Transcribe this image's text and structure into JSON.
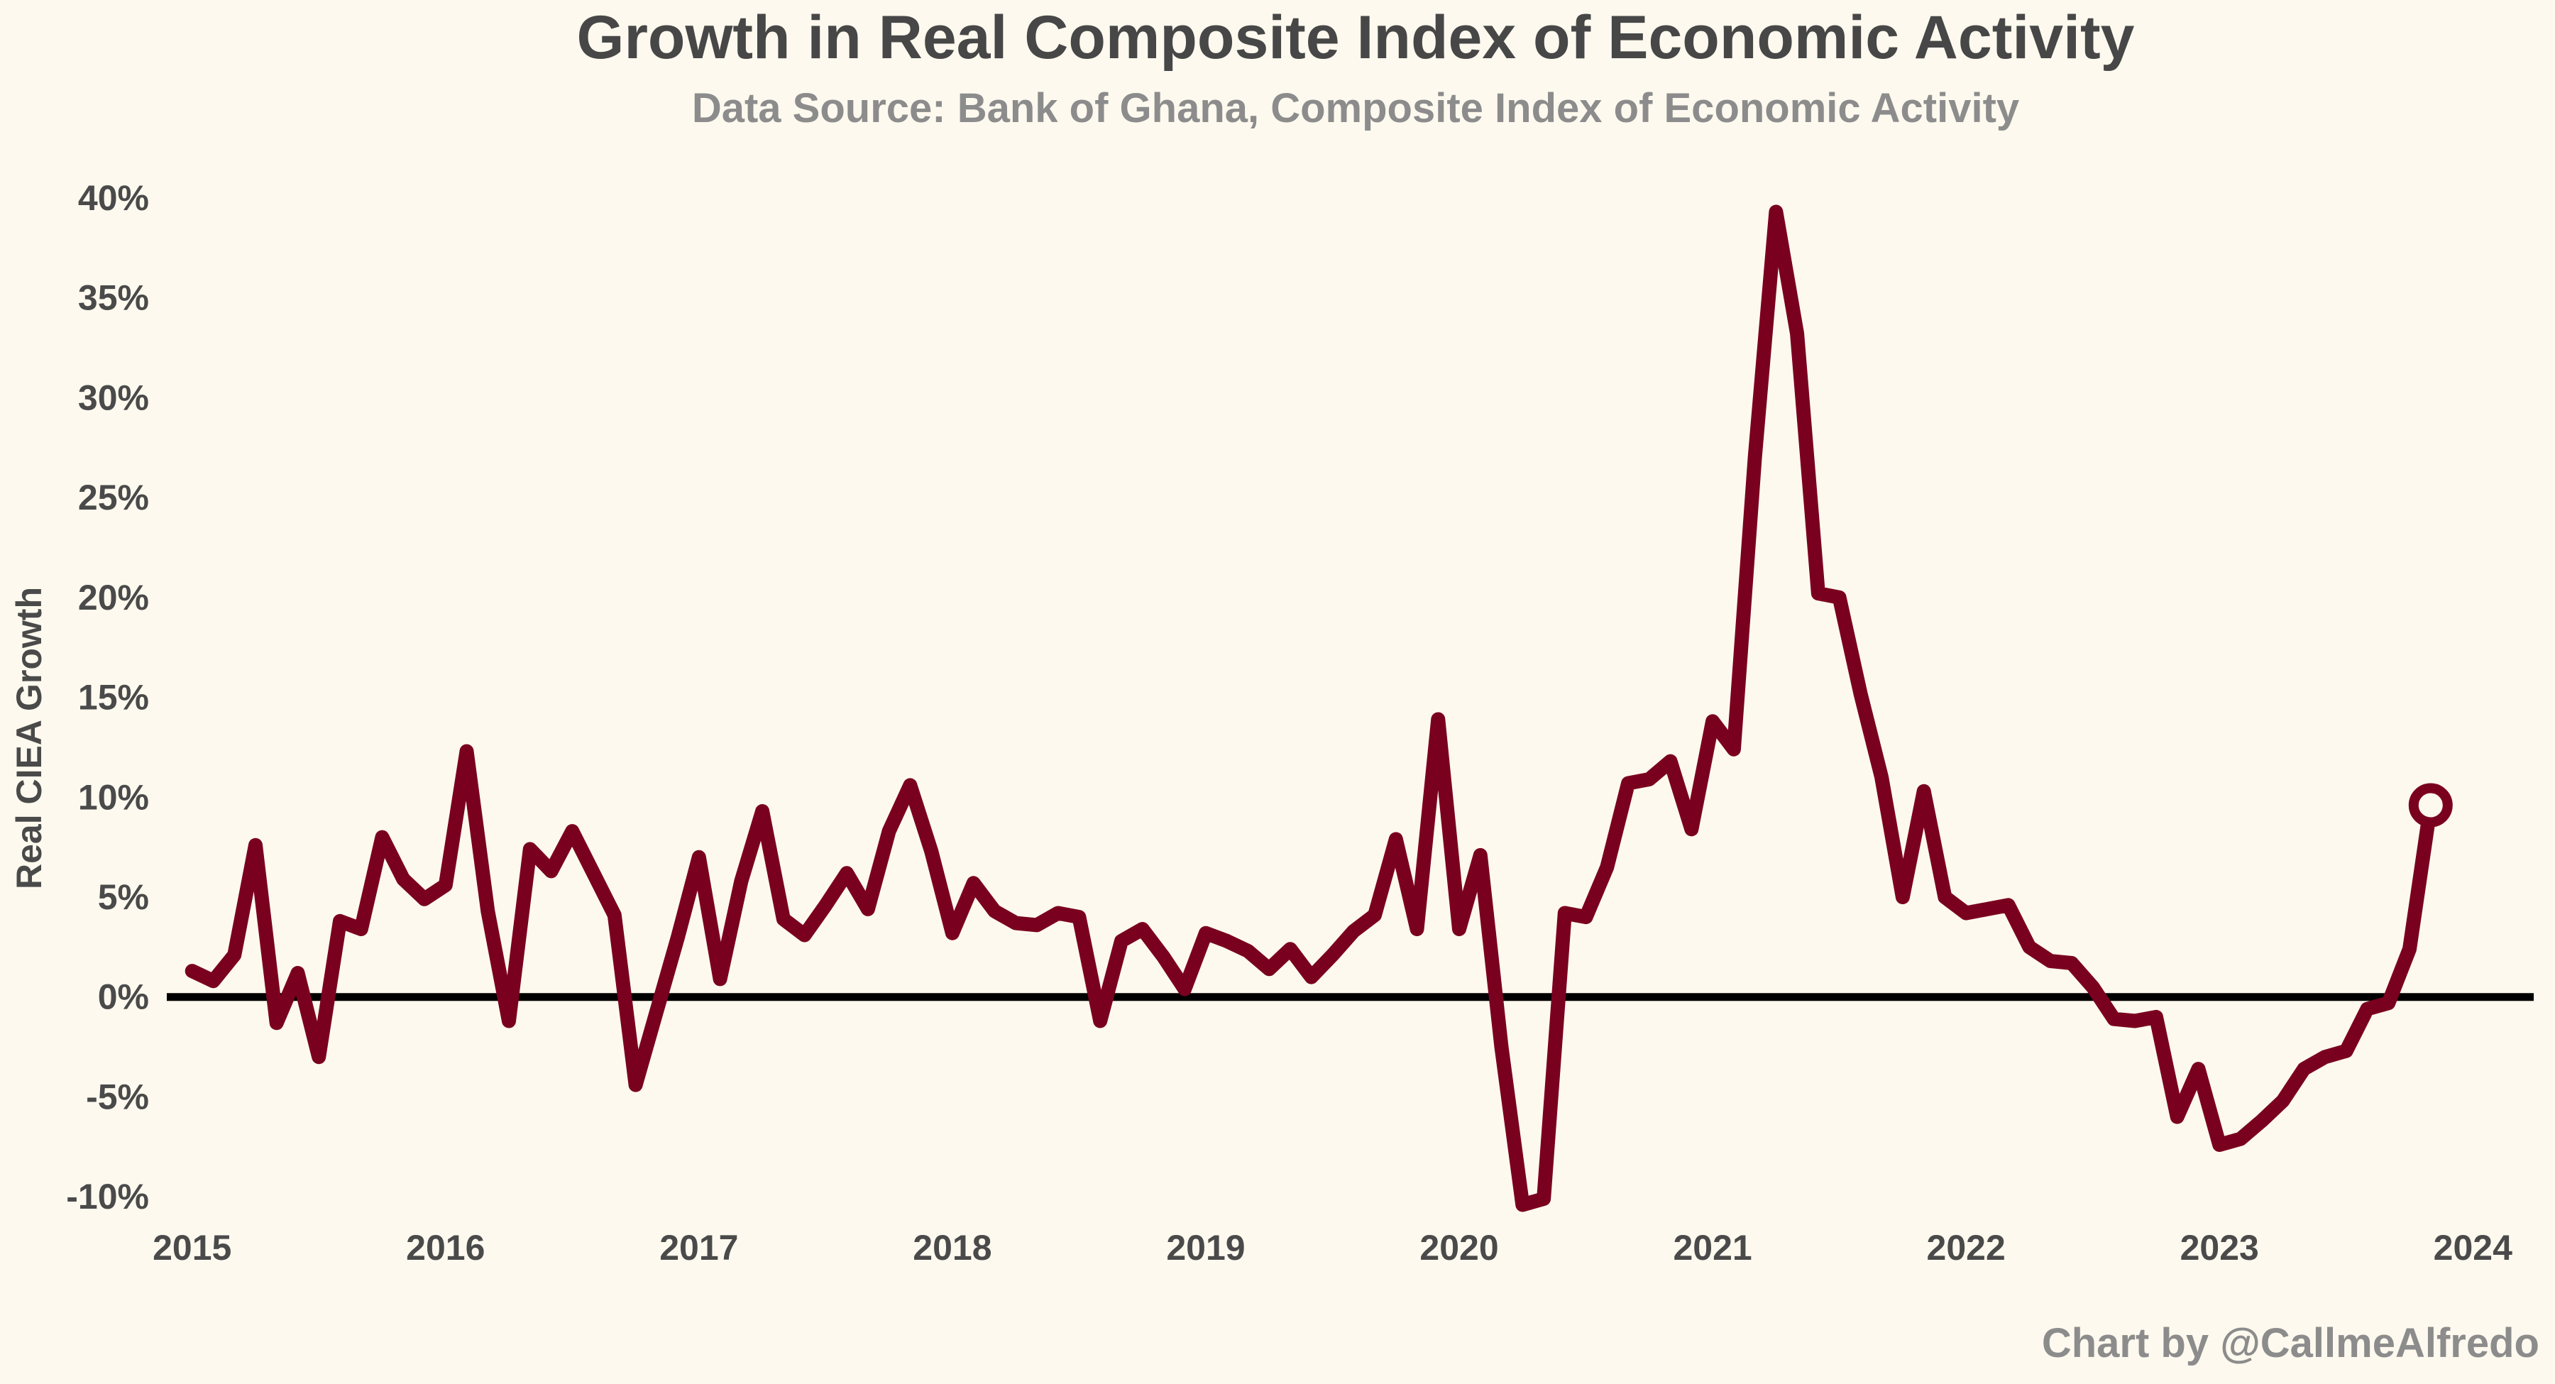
{
  "chart_data": {
    "type": "line",
    "title": "Growth in Real Composite Index of Economic Activity",
    "subtitle": "Data Source: Bank of Ghana, Composite Index of Economic Activity",
    "xlabel": "",
    "ylabel": "Real CIEA Growth",
    "credit": "Chart by @CallmeAlfredo",
    "xlim": [
      2014.9,
      2024.24
    ],
    "ylim": [
      -11.2,
      42.8
    ],
    "x_ticks": [
      2015,
      2016,
      2017,
      2018,
      2019,
      2020,
      2021,
      2022,
      2023,
      2024
    ],
    "x_tick_labels": [
      "2015",
      "2016",
      "2017",
      "2018",
      "2019",
      "2020",
      "2021",
      "2022",
      "2023",
      "2024"
    ],
    "y_ticks": [
      -10,
      -5,
      0,
      5,
      10,
      15,
      20,
      25,
      30,
      35,
      40
    ],
    "y_tick_labels": [
      "-10%",
      "-5%",
      "0%",
      "5%",
      "10%",
      "15%",
      "20%",
      "25%",
      "30%",
      "35%",
      "40%"
    ],
    "grid": false,
    "zero_line": true,
    "colors": {
      "line": "#7a0020",
      "zero_line": "#000000",
      "background": "#fdf9ee"
    },
    "series": [
      {
        "x": [
          "2015-01",
          "2015-02",
          "2015-03",
          "2015-04",
          "2015-05",
          "2015-06",
          "2015-07",
          "2015-08",
          "2015-09",
          "2015-10",
          "2015-11",
          "2015-12",
          "2016-01",
          "2016-02",
          "2016-03",
          "2016-04",
          "2016-05",
          "2016-06",
          "2016-07",
          "2016-08",
          "2016-09",
          "2016-10",
          "2016-11",
          "2016-12",
          "2017-01",
          "2017-02",
          "2017-03",
          "2017-04",
          "2017-05",
          "2017-06",
          "2017-07",
          "2017-08",
          "2017-09",
          "2017-10",
          "2017-11",
          "2017-12",
          "2018-01",
          "2018-02",
          "2018-03",
          "2018-04",
          "2018-05",
          "2018-06",
          "2018-07",
          "2018-08",
          "2018-09",
          "2018-10",
          "2018-11",
          "2018-12",
          "2019-01",
          "2019-02",
          "2019-03",
          "2019-04",
          "2019-05",
          "2019-06",
          "2019-07",
          "2019-08",
          "2019-09",
          "2019-10",
          "2019-11",
          "2019-12",
          "2020-01",
          "2020-02",
          "2020-03",
          "2020-04",
          "2020-05",
          "2020-06",
          "2020-07",
          "2020-08",
          "2020-09",
          "2020-10",
          "2020-11",
          "2020-12",
          "2021-01",
          "2021-02",
          "2021-03",
          "2021-04",
          "2021-05",
          "2021-06",
          "2021-07",
          "2021-08",
          "2021-09",
          "2021-10",
          "2021-11",
          "2021-12",
          "2022-01",
          "2022-02",
          "2022-03",
          "2022-04",
          "2022-05",
          "2022-06",
          "2022-07",
          "2022-08",
          "2022-09",
          "2022-10",
          "2022-11",
          "2022-12",
          "2023-01",
          "2023-02",
          "2023-03",
          "2023-04",
          "2023-05",
          "2023-06",
          "2023-07",
          "2023-08",
          "2023-09",
          "2023-10",
          "2023-11"
        ],
        "values": [
          1.3,
          0.8,
          2.1,
          7.6,
          -1.3,
          1.2,
          -3.0,
          3.8,
          3.4,
          8.0,
          5.9,
          4.9,
          5.6,
          12.3,
          4.3,
          -1.2,
          7.4,
          6.3,
          8.3,
          6.2,
          4.1,
          -4.4,
          -0.7,
          3.0,
          7.0,
          0.9,
          5.8,
          9.3,
          3.9,
          3.1,
          4.6,
          6.2,
          4.4,
          8.3,
          10.6,
          7.3,
          3.2,
          5.7,
          4.3,
          3.7,
          3.6,
          4.2,
          4.0,
          -1.2,
          2.8,
          3.4,
          2.0,
          0.4,
          3.2,
          2.8,
          2.3,
          1.4,
          2.4,
          1.0,
          2.1,
          3.3,
          4.1,
          7.9,
          3.4,
          13.9,
          3.4,
          7.1,
          -2.5,
          -10.4,
          -10.1,
          4.2,
          4.0,
          6.5,
          10.7,
          10.9,
          11.8,
          8.4,
          13.8,
          12.4,
          27.0,
          39.3,
          33.2,
          20.2,
          20.0,
          15.2,
          11.0,
          5.0,
          10.3,
          5.0,
          4.2,
          4.4,
          4.6,
          2.5,
          1.8,
          1.7,
          0.5,
          -1.1,
          -1.2,
          -1.0,
          -6.0,
          -3.6,
          -7.4,
          -7.1,
          -6.2,
          -5.2,
          -3.6,
          -3.0,
          -2.7,
          -0.6,
          -0.3,
          2.4,
          9.6
        ]
      }
    ]
  }
}
